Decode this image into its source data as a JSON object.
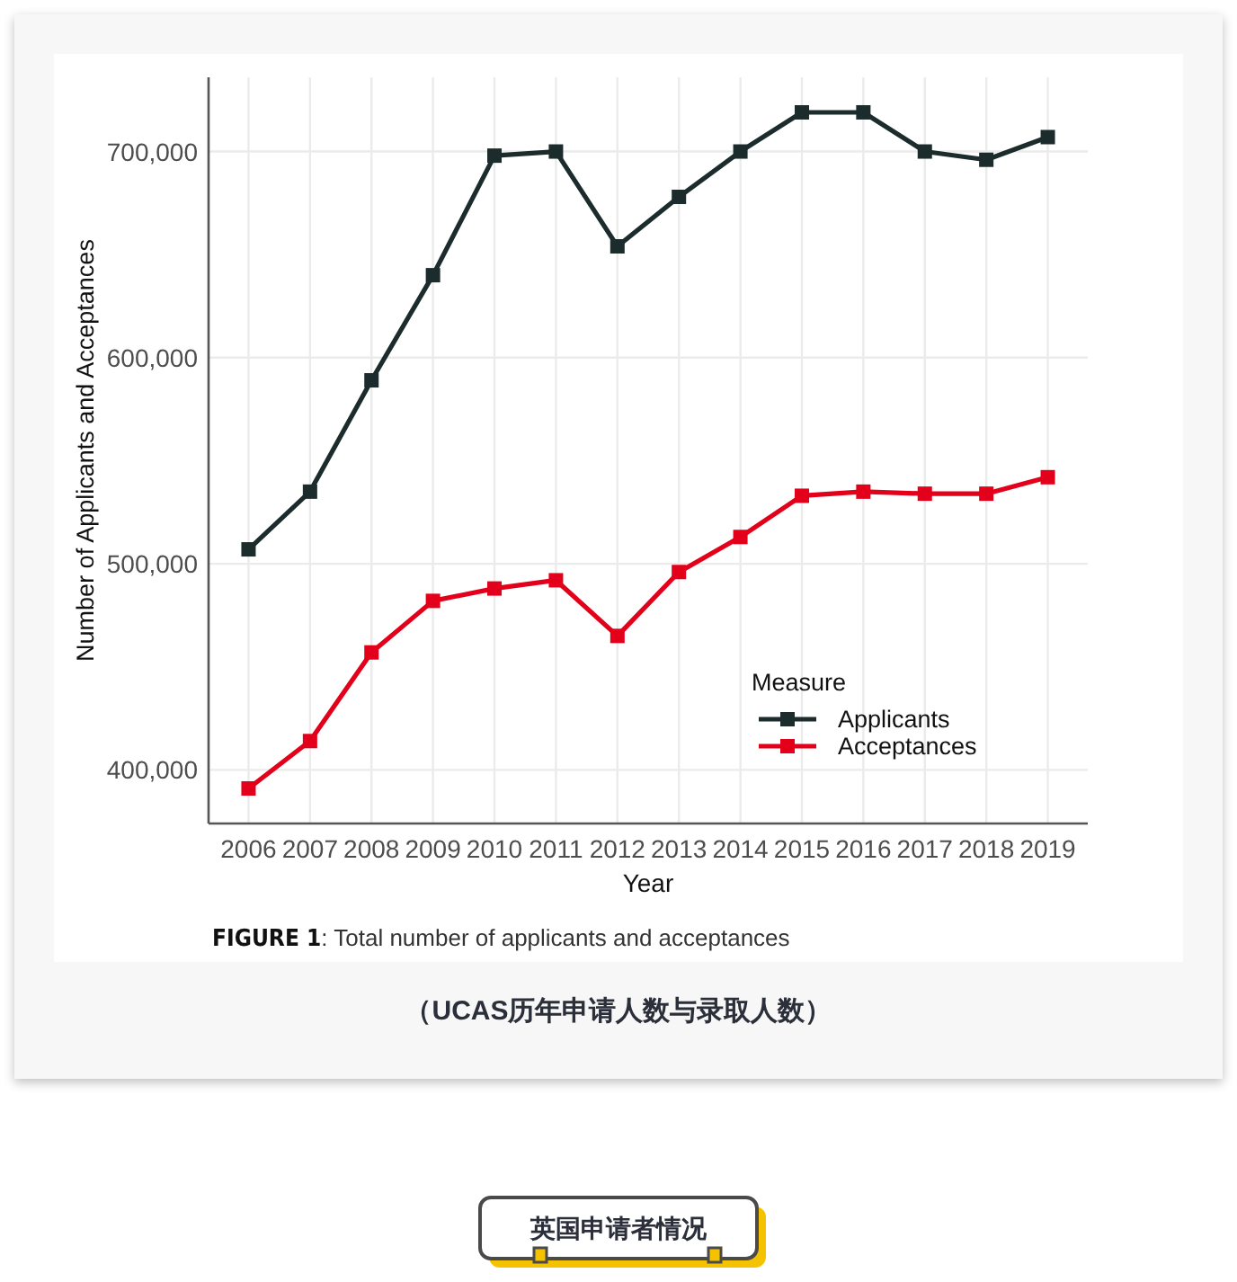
{
  "chart_data": {
    "type": "line",
    "categories": [
      "2006",
      "2007",
      "2008",
      "2009",
      "2010",
      "2011",
      "2012",
      "2013",
      "2014",
      "2015",
      "2016",
      "2017",
      "2018",
      "2019"
    ],
    "xlabel": "Year",
    "ylabel": "Number of Applicants and Acceptances",
    "legend_title": "Measure",
    "series": [
      {
        "name": "Applicants",
        "color": "#1c2b2b",
        "values": [
          507000,
          535000,
          589000,
          640000,
          698000,
          700000,
          654000,
          678000,
          700000,
          719000,
          719000,
          700000,
          696000,
          707000
        ]
      },
      {
        "name": "Acceptances",
        "color": "#e2001a",
        "values": [
          391000,
          414000,
          457000,
          482000,
          488000,
          492000,
          465000,
          496000,
          513000,
          533000,
          535000,
          534000,
          534000,
          542000
        ]
      }
    ],
    "ylim": [
      374000,
      736000
    ],
    "yticks": [
      {
        "value": 400000,
        "label": "400,000"
      },
      {
        "value": 500000,
        "label": "500,000"
      },
      {
        "value": 600000,
        "label": "600,000"
      },
      {
        "value": 700000,
        "label": "700,000"
      }
    ],
    "grid": true,
    "legend": "bottom right",
    "marker": "square",
    "line_style": "solid",
    "annotations": [
      "FIGURE 1: Total number of applicants and acceptances",
      "（UCAS历年申请人数与录取人数）",
      "英国申请者情况"
    ]
  }
}
